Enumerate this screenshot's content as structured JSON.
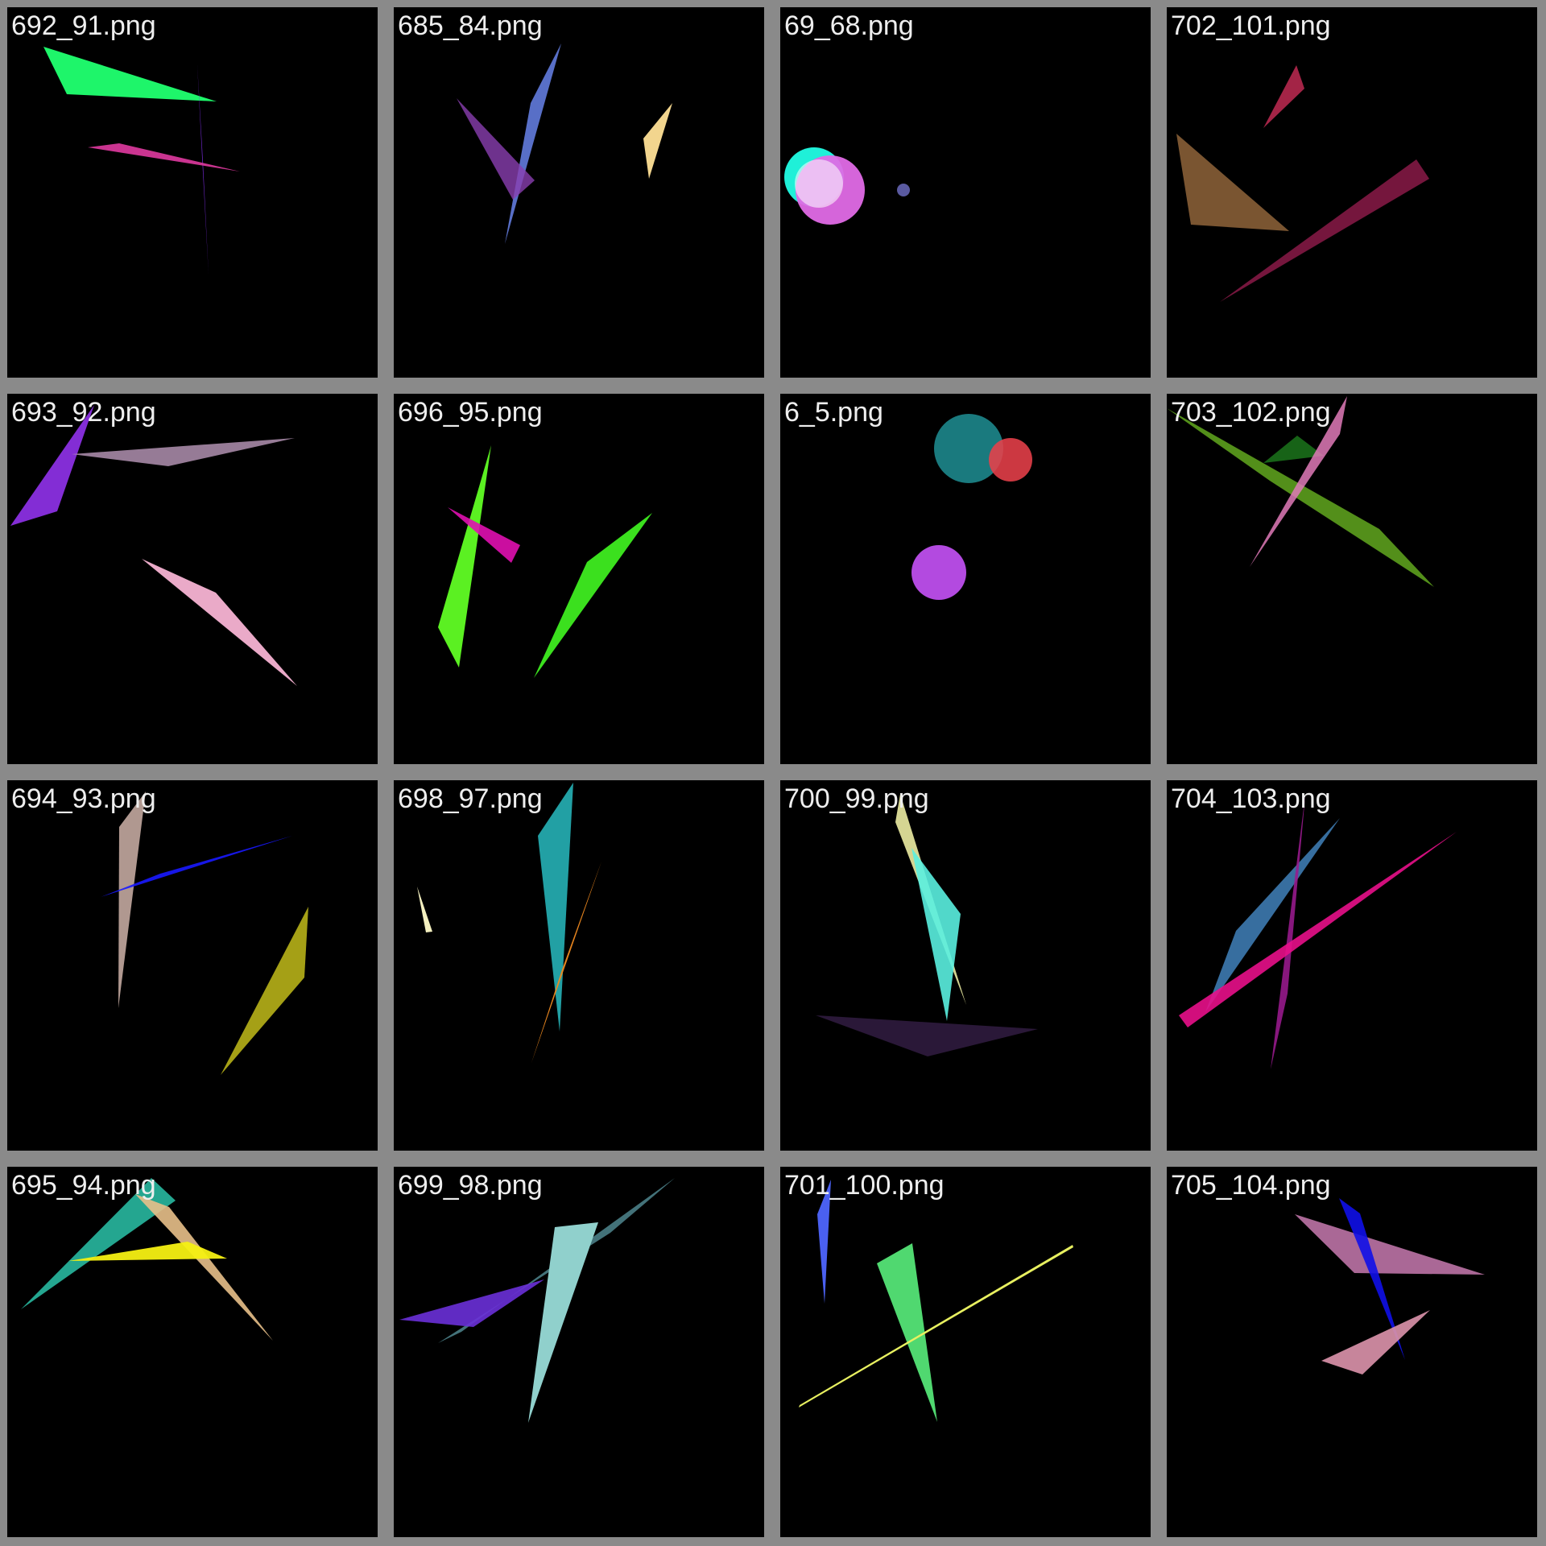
{
  "background_color": "#000000",
  "frame_color": "#8a8a8a",
  "tiles": [
    {
      "label": "692_91.png",
      "shapes": [
        "green-triangle",
        "violet-sliver",
        "magenta-sliver"
      ]
    },
    {
      "label": "685_84.png",
      "shapes": [
        "blue-sliver",
        "purple-triangle",
        "tan-triangle"
      ]
    },
    {
      "label": "69_68.png",
      "shapes": [
        "cyan-circle",
        "pink-circle",
        "small-slate-circle"
      ]
    },
    {
      "label": "702_101.png",
      "shapes": [
        "crimson-triangle",
        "brown-triangle",
        "maroon-sliver"
      ]
    },
    {
      "label": "693_92.png",
      "shapes": [
        "violet-triangle",
        "mauve-triangle",
        "pink-triangle"
      ]
    },
    {
      "label": "696_95.png",
      "shapes": [
        "lime-triangle",
        "magenta-triangle",
        "green-triangle"
      ]
    },
    {
      "label": "6_5.png",
      "shapes": [
        "teal-circle",
        "red-circle",
        "purple-circle"
      ]
    },
    {
      "label": "703_102.png",
      "shapes": [
        "olive-sliver",
        "dark-green-triangle",
        "pink-sliver"
      ]
    },
    {
      "label": "694_93.png",
      "shapes": [
        "taupe-triangle",
        "blue-sliver",
        "olive-triangle"
      ]
    },
    {
      "label": "698_97.png",
      "shapes": [
        "teal-triangle",
        "orange-sliver",
        "cream-sliver"
      ]
    },
    {
      "label": "700_99.png",
      "shapes": [
        "khaki-sliver",
        "aqua-triangle",
        "dark-purple-triangle"
      ]
    },
    {
      "label": "704_103.png",
      "shapes": [
        "steel-blue-triangle",
        "purple-sliver",
        "hot-pink-bar"
      ]
    },
    {
      "label": "695_94.png",
      "shapes": [
        "teal-triangle",
        "tan-triangle",
        "yellow-triangle"
      ]
    },
    {
      "label": "699_98.png",
      "shapes": [
        "slate-teal-sliver",
        "violet-triangle",
        "pale-teal-triangle"
      ]
    },
    {
      "label": "701_100.png",
      "shapes": [
        "blue-sliver",
        "green-triangle",
        "yellow-line"
      ]
    },
    {
      "label": "705_104.png",
      "shapes": [
        "mauve-triangle",
        "blue-sliver",
        "pink-triangle"
      ]
    }
  ]
}
